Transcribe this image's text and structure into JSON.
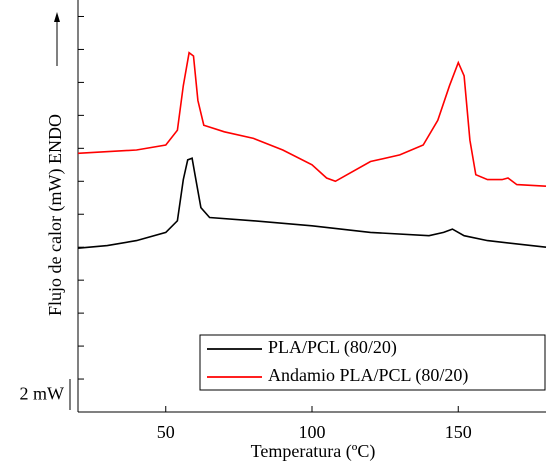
{
  "chart_data": {
    "type": "line",
    "x_label": "Temperatura (ºC)",
    "y_label": "Flujo de calor (mW) ENDO",
    "scale_bar": {
      "label": "2 mW",
      "value": 2
    },
    "xlim": [
      20,
      180
    ],
    "xticks": [
      50,
      100,
      150
    ],
    "ylim": [
      0,
      25
    ],
    "yticks": [
      2,
      4,
      6,
      8,
      10,
      12,
      14,
      16,
      18,
      20,
      22,
      24
    ],
    "legend": "lower right",
    "series": [
      {
        "name": "PLA/PCL (80/20)",
        "color": "#000000",
        "x": [
          20,
          30,
          40,
          50,
          54,
          56,
          57.5,
          59,
          60,
          62,
          65,
          80,
          100,
          120,
          140,
          145,
          148,
          152,
          160,
          180
        ],
        "values": [
          9.94,
          10.1,
          10.4,
          10.9,
          11.6,
          14.1,
          15.3,
          15.4,
          14.4,
          12.4,
          11.8,
          11.6,
          11.3,
          10.9,
          10.7,
          10.9,
          11.1,
          10.7,
          10.4,
          10.0
        ]
      },
      {
        "name": "Andamio PLA/PCL (80/20)",
        "color": "#ff0000",
        "x": [
          20,
          40,
          50,
          54,
          56,
          58,
          59.5,
          61,
          63,
          70,
          80,
          90,
          100,
          105,
          108,
          112,
          120,
          130,
          138,
          143,
          147,
          150,
          152,
          154,
          156,
          160,
          165,
          167,
          170,
          180
        ],
        "values": [
          15.7,
          15.9,
          16.2,
          17.1,
          19.8,
          21.8,
          21.6,
          18.9,
          17.4,
          17.0,
          16.6,
          15.9,
          15.0,
          14.2,
          14.0,
          14.4,
          15.2,
          15.6,
          16.2,
          17.7,
          19.8,
          21.2,
          20.4,
          16.5,
          14.4,
          14.1,
          14.1,
          14.2,
          13.8,
          13.7
        ]
      }
    ]
  }
}
